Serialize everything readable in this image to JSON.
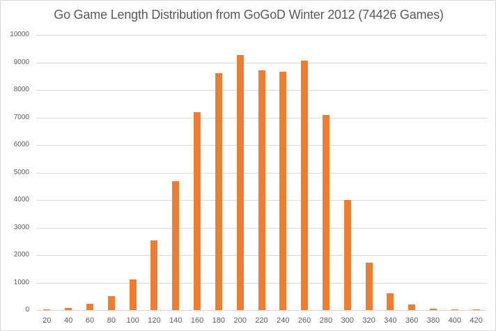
{
  "chart_data": {
    "type": "bar",
    "title": "Go Game Length Distribution from GoGoD Winter 2012 (74426 Games)",
    "xlabel": "",
    "ylabel": "",
    "ylim": [
      0,
      10000
    ],
    "yticks": [
      0,
      1000,
      2000,
      3000,
      4000,
      5000,
      6000,
      7000,
      8000,
      9000,
      10000
    ],
    "grid": true,
    "legend": "none",
    "bar_color": "#ed7d31",
    "categories": [
      "20",
      "40",
      "60",
      "80",
      "100",
      "120",
      "140",
      "160",
      "180",
      "200",
      "220",
      "240",
      "260",
      "280",
      "300",
      "320",
      "340",
      "360",
      "380",
      "400",
      "420"
    ],
    "values": [
      30,
      80,
      230,
      510,
      1110,
      2530,
      4680,
      7200,
      8620,
      9260,
      8700,
      8650,
      9060,
      7100,
      3990,
      1730,
      610,
      200,
      60,
      30,
      30
    ]
  }
}
